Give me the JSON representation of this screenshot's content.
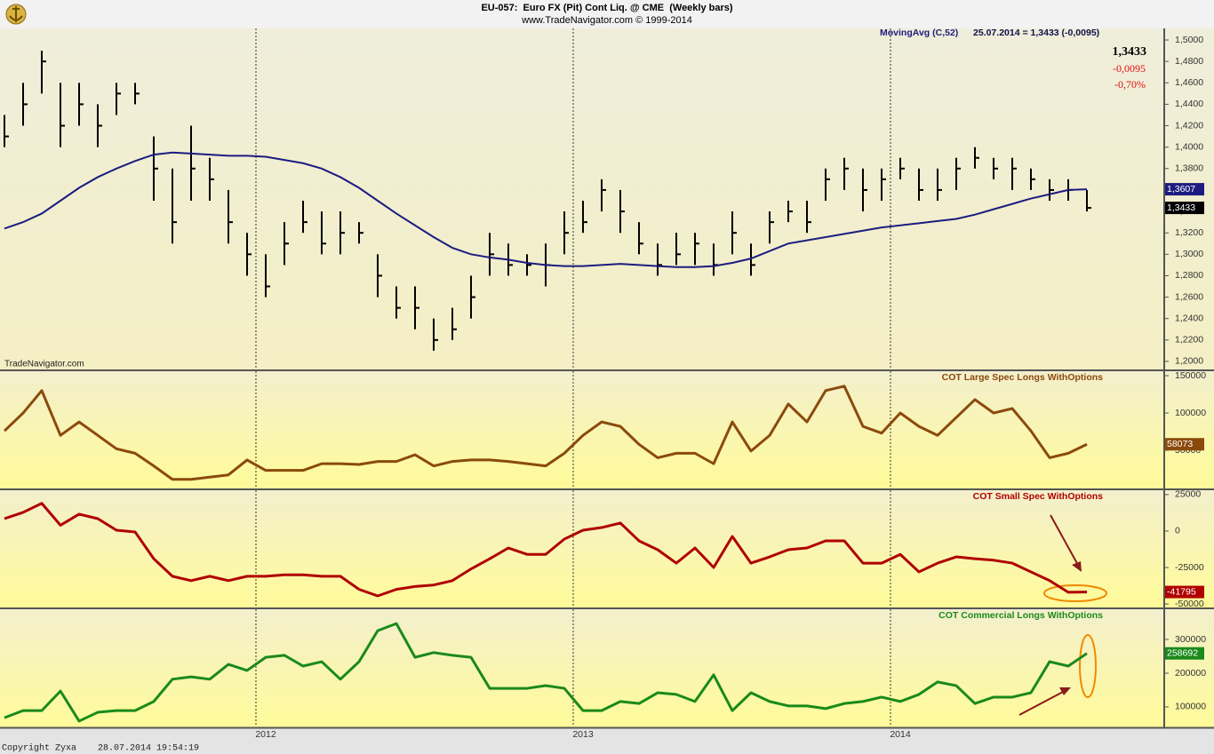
{
  "footer": "Copyright Zyxa    28.07.2014 19:54:19",
  "chart_data": [
    {
      "type": "hlc",
      "title": "EU-057:  Euro FX (Pit) Cont Liq. @ CME  (Weekly bars)",
      "subtitle": "www.TradeNavigator.com © 1999-2014",
      "watermark": "TradeNavigator.com",
      "color": "#000000",
      "high": [
        1.43,
        1.46,
        1.49,
        1.46,
        1.46,
        1.44,
        1.46,
        1.46,
        1.41,
        1.38,
        1.42,
        1.39,
        1.36,
        1.32,
        1.3,
        1.33,
        1.35,
        1.34,
        1.34,
        1.33,
        1.3,
        1.27,
        1.27,
        1.24,
        1.25,
        1.28,
        1.32,
        1.31,
        1.3,
        1.31,
        1.34,
        1.35,
        1.37,
        1.36,
        1.33,
        1.31,
        1.32,
        1.32,
        1.31,
        1.34,
        1.31,
        1.34,
        1.35,
        1.35,
        1.38,
        1.39,
        1.38,
        1.38,
        1.39,
        1.38,
        1.38,
        1.39,
        1.4,
        1.39,
        1.39,
        1.38,
        1.37,
        1.37,
        1.36
      ],
      "low": [
        1.4,
        1.42,
        1.45,
        1.4,
        1.42,
        1.4,
        1.43,
        1.44,
        1.35,
        1.31,
        1.35,
        1.35,
        1.31,
        1.28,
        1.26,
        1.29,
        1.32,
        1.3,
        1.3,
        1.31,
        1.26,
        1.24,
        1.23,
        1.21,
        1.22,
        1.24,
        1.28,
        1.28,
        1.28,
        1.27,
        1.3,
        1.32,
        1.34,
        1.32,
        1.3,
        1.28,
        1.29,
        1.29,
        1.28,
        1.3,
        1.28,
        1.31,
        1.33,
        1.32,
        1.35,
        1.36,
        1.34,
        1.35,
        1.37,
        1.35,
        1.35,
        1.36,
        1.38,
        1.37,
        1.36,
        1.36,
        1.35,
        1.35,
        1.34
      ],
      "close": [
        1.41,
        1.44,
        1.48,
        1.42,
        1.44,
        1.42,
        1.45,
        1.45,
        1.38,
        1.33,
        1.38,
        1.37,
        1.33,
        1.3,
        1.27,
        1.31,
        1.33,
        1.31,
        1.32,
        1.32,
        1.28,
        1.25,
        1.25,
        1.22,
        1.23,
        1.26,
        1.3,
        1.29,
        1.29,
        1.29,
        1.32,
        1.33,
        1.36,
        1.34,
        1.31,
        1.29,
        1.3,
        1.31,
        1.29,
        1.32,
        1.29,
        1.33,
        1.34,
        1.33,
        1.37,
        1.38,
        1.36,
        1.37,
        1.38,
        1.36,
        1.36,
        1.38,
        1.39,
        1.38,
        1.38,
        1.37,
        1.36,
        1.36,
        1.3433
      ],
      "last_label": "1,3433",
      "change": {
        "value": -0.0095,
        "label": "-0,0095"
      },
      "change_pct": {
        "value": -0.7,
        "label": "-0,70%"
      },
      "quote": "25.07.2014 = 1,3433 (-0,0095)",
      "overlay": {
        "name": "MovingAvg (C,52)",
        "color": "#1c1c80",
        "values": [
          1.324,
          1.33,
          1.338,
          1.35,
          1.362,
          1.372,
          1.38,
          1.387,
          1.393,
          1.395,
          1.394,
          1.393,
          1.392,
          1.392,
          1.391,
          1.388,
          1.385,
          1.38,
          1.372,
          1.362,
          1.35,
          1.338,
          1.327,
          1.316,
          1.306,
          1.3,
          1.297,
          1.295,
          1.292,
          1.29,
          1.289,
          1.289,
          1.29,
          1.291,
          1.29,
          1.289,
          1.288,
          1.288,
          1.289,
          1.292,
          1.296,
          1.303,
          1.31,
          1.313,
          1.316,
          1.319,
          1.322,
          1.325,
          1.327,
          1.329,
          1.331,
          1.333,
          1.337,
          1.342,
          1.347,
          1.352,
          1.356,
          1.36,
          1.3607
        ],
        "last_label": "1,3607"
      },
      "ylim": [
        1.1925,
        1.5108
      ],
      "yticks": [
        {
          "value": 1.2,
          "label": "1,2000"
        },
        {
          "value": 1.22,
          "label": "1,2200"
        },
        {
          "value": 1.24,
          "label": "1,2400"
        },
        {
          "value": 1.26,
          "label": "1,2600"
        },
        {
          "value": 1.28,
          "label": "1,2800"
        },
        {
          "value": 1.3,
          "label": "1,3000"
        },
        {
          "value": 1.32,
          "label": "1,3200"
        },
        {
          "value": 1.34,
          "label": "1,3400"
        },
        {
          "value": 1.36,
          "label": "1,3600"
        },
        {
          "value": 1.38,
          "label": "1,3800"
        },
        {
          "value": 1.4,
          "label": "1,4000"
        },
        {
          "value": 1.42,
          "label": "1,4200"
        },
        {
          "value": 1.44,
          "label": "1,4400"
        },
        {
          "value": 1.46,
          "label": "1,4600"
        },
        {
          "value": 1.48,
          "label": "1,4800"
        },
        {
          "value": 1.5,
          "label": "1,5000"
        }
      ]
    },
    {
      "type": "line",
      "series": [
        {
          "name": "COT Large Spec Longs WithOptions",
          "color": "#8b4a0c",
          "values": [
            76000,
            100000,
            130000,
            70000,
            88000,
            70000,
            52000,
            46000,
            29000,
            11000,
            11000,
            14000,
            17000,
            37000,
            23000,
            23000,
            23000,
            32000,
            32000,
            31000,
            35000,
            35000,
            44000,
            29000,
            35000,
            37000,
            37000,
            35000,
            32000,
            29000,
            46000,
            70000,
            88000,
            82000,
            58000,
            40000,
            46000,
            46000,
            32000,
            88000,
            49000,
            70000,
            112000,
            88000,
            130000,
            136000,
            82000,
            73000,
            100000,
            82000,
            70000,
            94000,
            118000,
            100000,
            106000,
            76000,
            40000,
            46000,
            58073
          ],
          "last_label": "58073"
        }
      ],
      "ylim": [
        0,
        156000
      ],
      "yticks": [
        50000,
        100000,
        150000
      ]
    },
    {
      "type": "line",
      "series": [
        {
          "name": "COT Small Spec WithOptions",
          "color": "#b00000",
          "values": [
            8500,
            12800,
            19000,
            4000,
            11600,
            8500,
            600,
            -600,
            -19000,
            -31000,
            -34000,
            -31000,
            -34000,
            -31000,
            -31000,
            -30000,
            -30000,
            -31000,
            -31000,
            -40000,
            -44500,
            -40000,
            -38000,
            -37000,
            -34000,
            -26000,
            -19000,
            -11600,
            -16000,
            -16000,
            -5500,
            600,
            2400,
            5500,
            -6700,
            -12800,
            -22000,
            -11600,
            -25000,
            -3700,
            -22000,
            -17700,
            -12800,
            -11600,
            -6700,
            -6700,
            -22000,
            -22000,
            -16000,
            -28000,
            -22000,
            -17700,
            -19000,
            -20000,
            -22000,
            -28000,
            -34000,
            -42000,
            -41795
          ],
          "last_label": "-41795"
        }
      ],
      "ylim": [
        -51800,
        28000
      ],
      "yticks": [
        25000,
        0,
        -25000,
        -50000
      ]
    },
    {
      "type": "line",
      "categories": [
        null,
        null,
        null,
        null,
        null,
        null,
        null,
        null,
        null,
        null,
        null,
        null,
        null,
        null,
        "2012",
        null,
        null,
        null,
        null,
        null,
        null,
        null,
        null,
        null,
        null,
        null,
        null,
        null,
        null,
        null,
        null,
        "2013",
        null,
        null,
        null,
        null,
        null,
        null,
        null,
        null,
        null,
        null,
        null,
        null,
        null,
        null,
        null,
        null,
        "2014",
        null,
        null,
        null,
        null,
        null,
        null,
        null,
        null,
        null,
        null
      ],
      "series": [
        {
          "name": "COT Commercial Longs WithOptions",
          "color": "#1a8a1a",
          "values": [
            68000,
            89000,
            89000,
            147000,
            58000,
            84000,
            89000,
            89000,
            116000,
            182000,
            189000,
            182000,
            226000,
            208000,
            247000,
            253000,
            221000,
            234000,
            182000,
            234000,
            326000,
            347000,
            247000,
            261000,
            253000,
            247000,
            155000,
            155000,
            155000,
            163000,
            155000,
            89000,
            89000,
            116000,
            110000,
            142000,
            137000,
            116000,
            195000,
            89000,
            142000,
            116000,
            103000,
            103000,
            95000,
            110000,
            116000,
            129000,
            116000,
            137000,
            174000,
            163000,
            110000,
            129000,
            129000,
            142000,
            234000,
            221000,
            258692
          ],
          "last_label": "258692"
        }
      ],
      "ylim": [
        42000,
        389500
      ],
      "yticks": [
        100000,
        200000,
        300000
      ]
    }
  ]
}
